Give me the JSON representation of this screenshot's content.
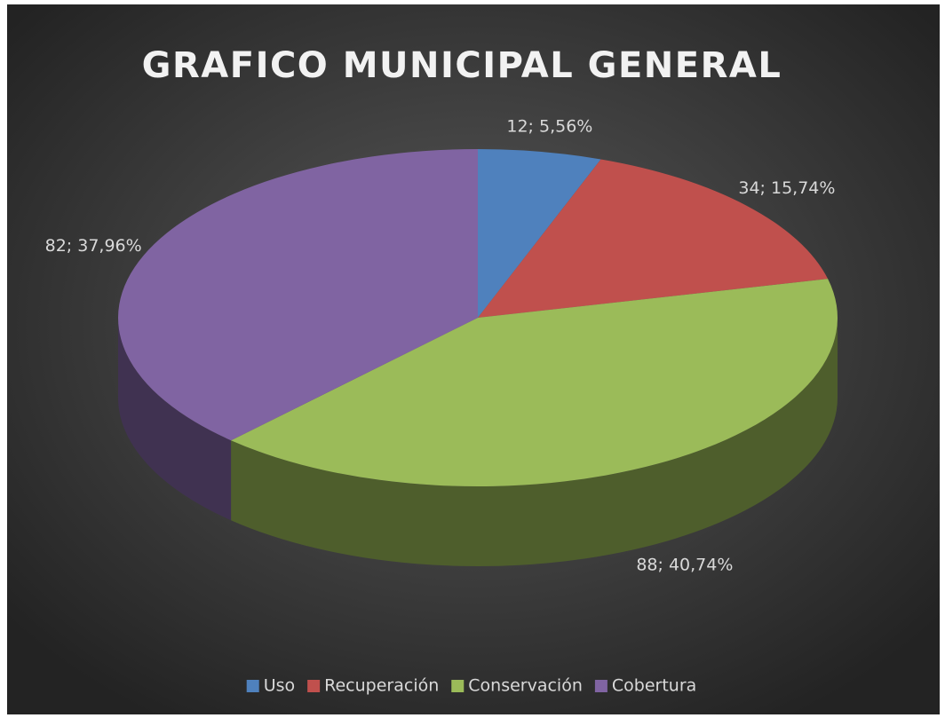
{
  "chart_data": {
    "type": "pie",
    "title": "GRAFICO MUNICIPAL GENERAL",
    "categories": [
      "Uso",
      "Recuperación",
      "Conservación",
      "Cobertura"
    ],
    "values": [
      12,
      34,
      88,
      82
    ],
    "value_labels": [
      "12; 5,56%",
      "34; 15,74%",
      "88; 40,74%",
      "82; 37,96%"
    ],
    "colors": [
      "#4f81bd",
      "#c0504d",
      "#9bbb59",
      "#8064a2"
    ],
    "legend": "bottom"
  }
}
